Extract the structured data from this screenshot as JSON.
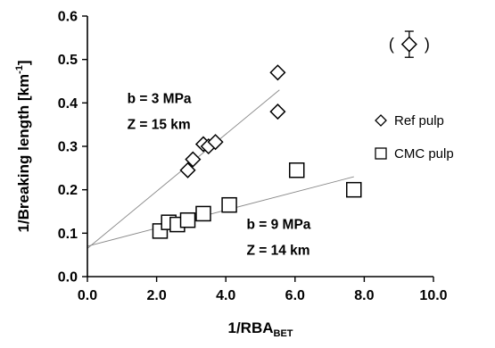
{
  "chart_data": {
    "type": "scatter",
    "title": "",
    "xlabel": "1/RBA",
    "xlabel_subscript": "BET",
    "ylabel": "1/Breaking length [km",
    "ylabel_superscript": "-1",
    "ylabel_close": "]",
    "xlim": [
      0.0,
      10.0
    ],
    "ylim": [
      0.0,
      0.6
    ],
    "xticks": [
      "0.0",
      "2.0",
      "4.0",
      "6.0",
      "8.0",
      "10.0"
    ],
    "yticks": [
      "0.0",
      "0.1",
      "0.2",
      "0.3",
      "0.4",
      "0.5",
      "0.6"
    ],
    "grid": false,
    "legend_position": "right",
    "series": [
      {
        "name": "Ref pulp",
        "marker": "diamond",
        "points": [
          [
            2.9,
            0.245
          ],
          [
            3.05,
            0.27
          ],
          [
            3.35,
            0.305
          ],
          [
            3.5,
            0.3
          ],
          [
            3.7,
            0.31
          ],
          [
            5.5,
            0.47
          ],
          [
            5.5,
            0.38
          ]
        ],
        "fit_line": {
          "x": [
            0.0,
            5.55
          ],
          "y": [
            0.065,
            0.43
          ]
        }
      },
      {
        "name": "CMC pulp",
        "marker": "square",
        "points": [
          [
            2.1,
            0.105
          ],
          [
            2.35,
            0.125
          ],
          [
            2.6,
            0.12
          ],
          [
            2.9,
            0.13
          ],
          [
            3.35,
            0.145
          ],
          [
            4.1,
            0.165
          ],
          [
            6.05,
            0.245
          ],
          [
            7.7,
            0.2
          ]
        ],
        "fit_line": {
          "x": [
            0.0,
            7.7
          ],
          "y": [
            0.07,
            0.23
          ]
        }
      }
    ],
    "annotations": [
      {
        "text": "b = 3 MPa",
        "x": 1.15,
        "y": 0.4
      },
      {
        "text": "Z = 15 km",
        "x": 1.15,
        "y": 0.34
      },
      {
        "text": "b = 9 MPa",
        "x": 4.6,
        "y": 0.11
      },
      {
        "text": "Z = 14 km",
        "x": 4.6,
        "y": 0.05
      }
    ],
    "error_marker": {
      "x": 9.3,
      "y": 0.535,
      "low": 0.505,
      "high": 0.565,
      "label_open": "(",
      "label_close": ")"
    }
  }
}
